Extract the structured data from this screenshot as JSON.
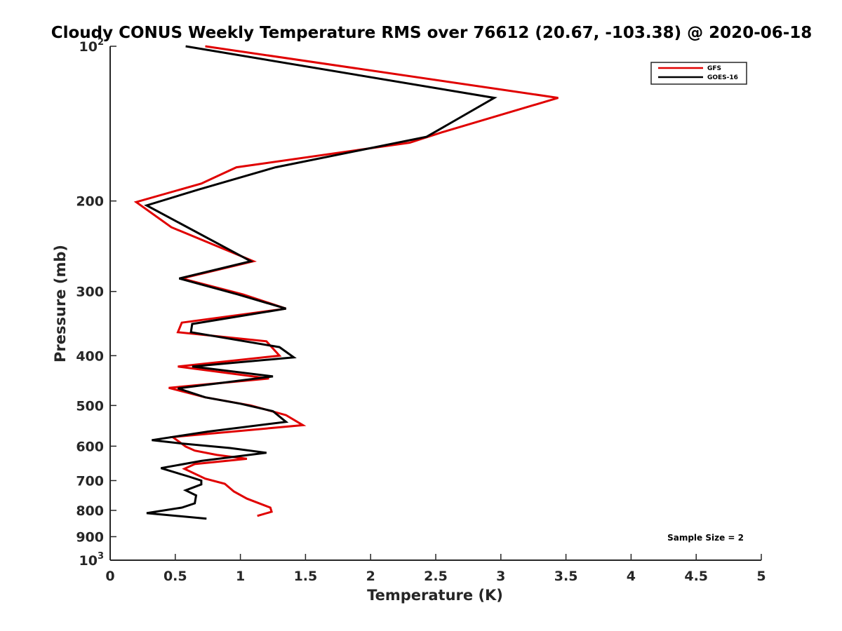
{
  "chart_data": {
    "type": "line",
    "title": "Cloudy CONUS Weekly Temperature RMS over 76612 (20.67, -103.38) @ 2020-06-18",
    "xlabel": "Temperature (K)",
    "ylabel": "Pressure (mb)",
    "xlim": [
      0,
      5
    ],
    "ylim": [
      100,
      1000
    ],
    "yscale": "log",
    "yreversed": true,
    "x_ticks": [
      0,
      0.5,
      1,
      1.5,
      2,
      2.5,
      3,
      3.5,
      4,
      4.5,
      5
    ],
    "x_tick_labels": [
      "0",
      "0.5",
      "1",
      "1.5",
      "2",
      "2.5",
      "3",
      "3.5",
      "4",
      "4.5",
      "5"
    ],
    "y_ticks": [
      100,
      200,
      300,
      400,
      500,
      600,
      700,
      800,
      900,
      1000
    ],
    "y_tick_labels": [
      {
        "base": "10",
        "exp": "2"
      },
      {
        "base": "200",
        "exp": ""
      },
      {
        "base": "300",
        "exp": ""
      },
      {
        "base": "400",
        "exp": ""
      },
      {
        "base": "500",
        "exp": ""
      },
      {
        "base": "600",
        "exp": ""
      },
      {
        "base": "700",
        "exp": ""
      },
      {
        "base": "800",
        "exp": ""
      },
      {
        "base": "900",
        "exp": ""
      },
      {
        "base": "10",
        "exp": "3"
      }
    ],
    "legend_position": "top-right",
    "annotation": "Sample Size = 2",
    "series": [
      {
        "name": "GFS",
        "color": "#e00000",
        "x": [
          0.73,
          3.44,
          2.55,
          2.3,
          0.97,
          0.7,
          0.2,
          0.47,
          1.1,
          0.55,
          1.02,
          1.35,
          0.55,
          0.52,
          1.2,
          1.3,
          0.52,
          1.22,
          0.45,
          0.73,
          1.08,
          1.35,
          1.48,
          0.48,
          0.58,
          0.65,
          0.82,
          1.05,
          0.65,
          0.57,
          0.73,
          0.88,
          0.95,
          1.05,
          1.23,
          1.24,
          1.13
        ],
        "y": [
          100,
          126,
          147,
          154,
          172,
          185,
          201,
          225,
          262,
          283,
          304,
          324,
          345,
          360,
          375,
          400,
          420,
          443,
          462,
          482,
          500,
          522,
          546,
          576,
          601,
          612,
          624,
          635,
          650,
          664,
          694,
          710,
          735,
          759,
          790,
          805,
          820
        ]
      },
      {
        "name": "GOES-16",
        "color": "#000000",
        "x": [
          0.58,
          2.95,
          2.43,
          1.27,
          0.68,
          0.28,
          1.08,
          0.53,
          0.98,
          1.35,
          0.63,
          0.62,
          1.3,
          1.41,
          0.63,
          1.25,
          0.52,
          0.73,
          1.0,
          1.25,
          1.35,
          0.75,
          0.32,
          0.55,
          0.92,
          1.2,
          0.7,
          0.39,
          0.6,
          0.7,
          0.7,
          0.58,
          0.66,
          0.65,
          0.55,
          0.28,
          0.74
        ],
        "y": [
          100,
          126,
          150,
          172,
          190,
          204,
          262,
          283,
          304,
          324,
          347,
          360,
          385,
          403,
          420,
          439,
          463,
          482,
          496,
          513,
          538,
          562,
          584,
          593,
          605,
          618,
          641,
          662,
          687,
          700,
          712,
          731,
          748,
          775,
          790,
          810,
          830
        ]
      }
    ]
  }
}
